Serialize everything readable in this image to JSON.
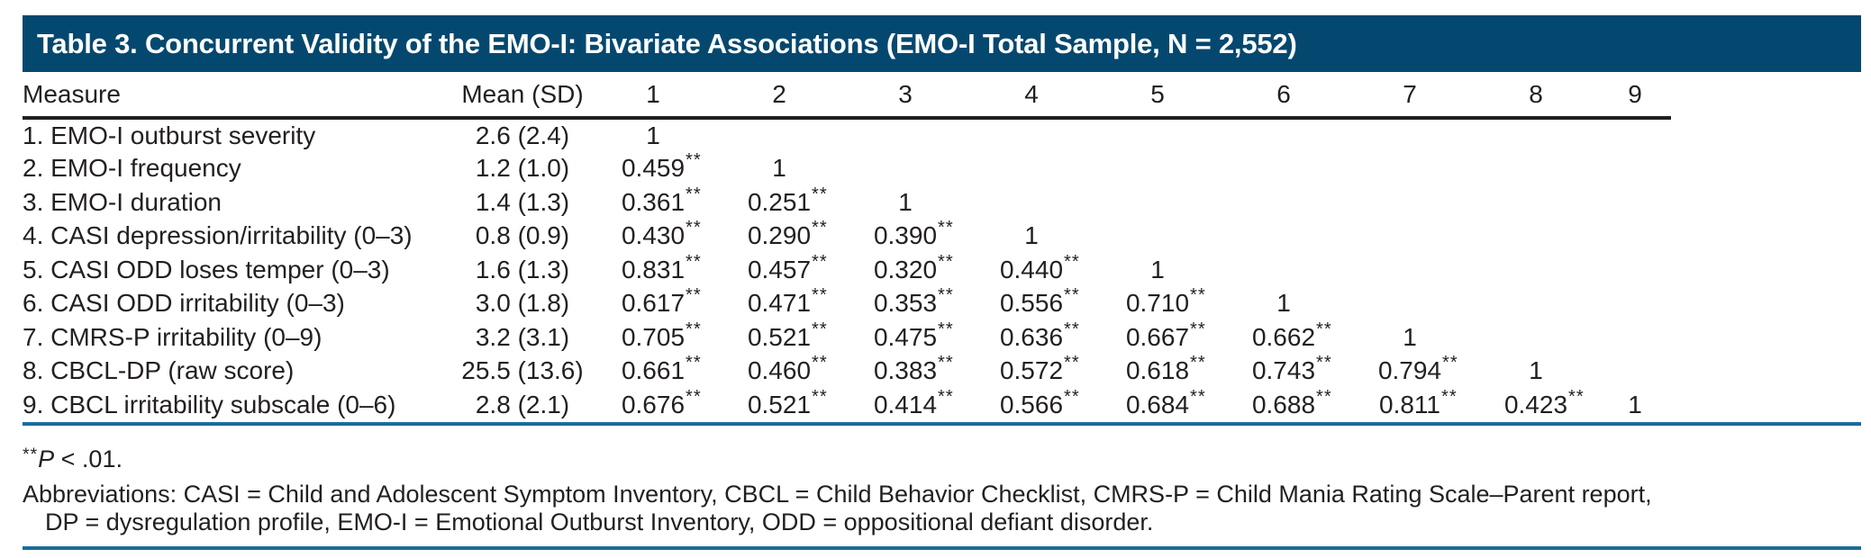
{
  "colors": {
    "title_bar_bg": "#05486f",
    "title_text": "#ffffff",
    "rule_blue": "#1b6c9c",
    "rule_black": "#231f20",
    "body_text": "#231f20"
  },
  "title": "Table 3. Concurrent Validity of the EMO-I: Bivariate Associations (EMO-I Total Sample, N = 2,552)",
  "table": {
    "headers": [
      "Measure",
      "Mean (SD)",
      "1",
      "2",
      "3",
      "4",
      "5",
      "6",
      "7",
      "8",
      "9"
    ],
    "rows": [
      {
        "measure": "1. EMO-I outburst severity",
        "mean_sd": "2.6 (2.4)",
        "correlations": [
          "1",
          "",
          "",
          "",
          "",
          "",
          "",
          "",
          ""
        ]
      },
      {
        "measure": "2. EMO-I frequency",
        "mean_sd": "1.2 (1.0)",
        "correlations": [
          "0.459**",
          "1",
          "",
          "",
          "",
          "",
          "",
          "",
          ""
        ]
      },
      {
        "measure": "3. EMO-I duration",
        "mean_sd": "1.4 (1.3)",
        "correlations": [
          "0.361**",
          "0.251**",
          "1",
          "",
          "",
          "",
          "",
          "",
          ""
        ]
      },
      {
        "measure": "4. CASI depression/irritability (0–3)",
        "mean_sd": "0.8 (0.9)",
        "correlations": [
          "0.430**",
          "0.290**",
          "0.390**",
          "1",
          "",
          "",
          "",
          "",
          ""
        ]
      },
      {
        "measure": "5. CASI ODD loses temper (0–3)",
        "mean_sd": "1.6 (1.3)",
        "correlations": [
          "0.831**",
          "0.457**",
          "0.320**",
          "0.440**",
          "1",
          "",
          "",
          "",
          ""
        ]
      },
      {
        "measure": "6. CASI ODD irritability (0–3)",
        "mean_sd": "3.0 (1.8)",
        "correlations": [
          "0.617**",
          "0.471**",
          "0.353**",
          "0.556**",
          "0.710**",
          "1",
          "",
          "",
          ""
        ]
      },
      {
        "measure": "7. CMRS-P irritability (0–9)",
        "mean_sd": "3.2 (3.1)",
        "correlations": [
          "0.705**",
          "0.521**",
          "0.475**",
          "0.636**",
          "0.667**",
          "0.662**",
          "1",
          "",
          ""
        ]
      },
      {
        "measure": "8. CBCL-DP (raw score)",
        "mean_sd": "25.5 (13.6)",
        "correlations": [
          "0.661**",
          "0.460**",
          "0.383**",
          "0.572**",
          "0.618**",
          "0.743**",
          "0.794**",
          "1",
          ""
        ]
      },
      {
        "measure": "9. CBCL irritability subscale (0–6)",
        "mean_sd": "2.8 (2.1)",
        "correlations": [
          "0.676**",
          "0.521**",
          "0.414**",
          "0.566**",
          "0.684**",
          "0.688**",
          "0.811**",
          "0.423**",
          "1"
        ]
      }
    ]
  },
  "footnotes": {
    "significance_stars": "**",
    "significance_p": "P",
    "significance_rest": " < .01.",
    "abbreviations_line1": "Abbreviations: CASI = Child and Adolescent Symptom Inventory, CBCL = Child Behavior Checklist, CMRS-P = Child Mania Rating Scale–Parent report,",
    "abbreviations_line2": "DP = dysregulation profile, EMO-I = Emotional Outburst Inventory, ODD = oppositional defiant disorder."
  }
}
